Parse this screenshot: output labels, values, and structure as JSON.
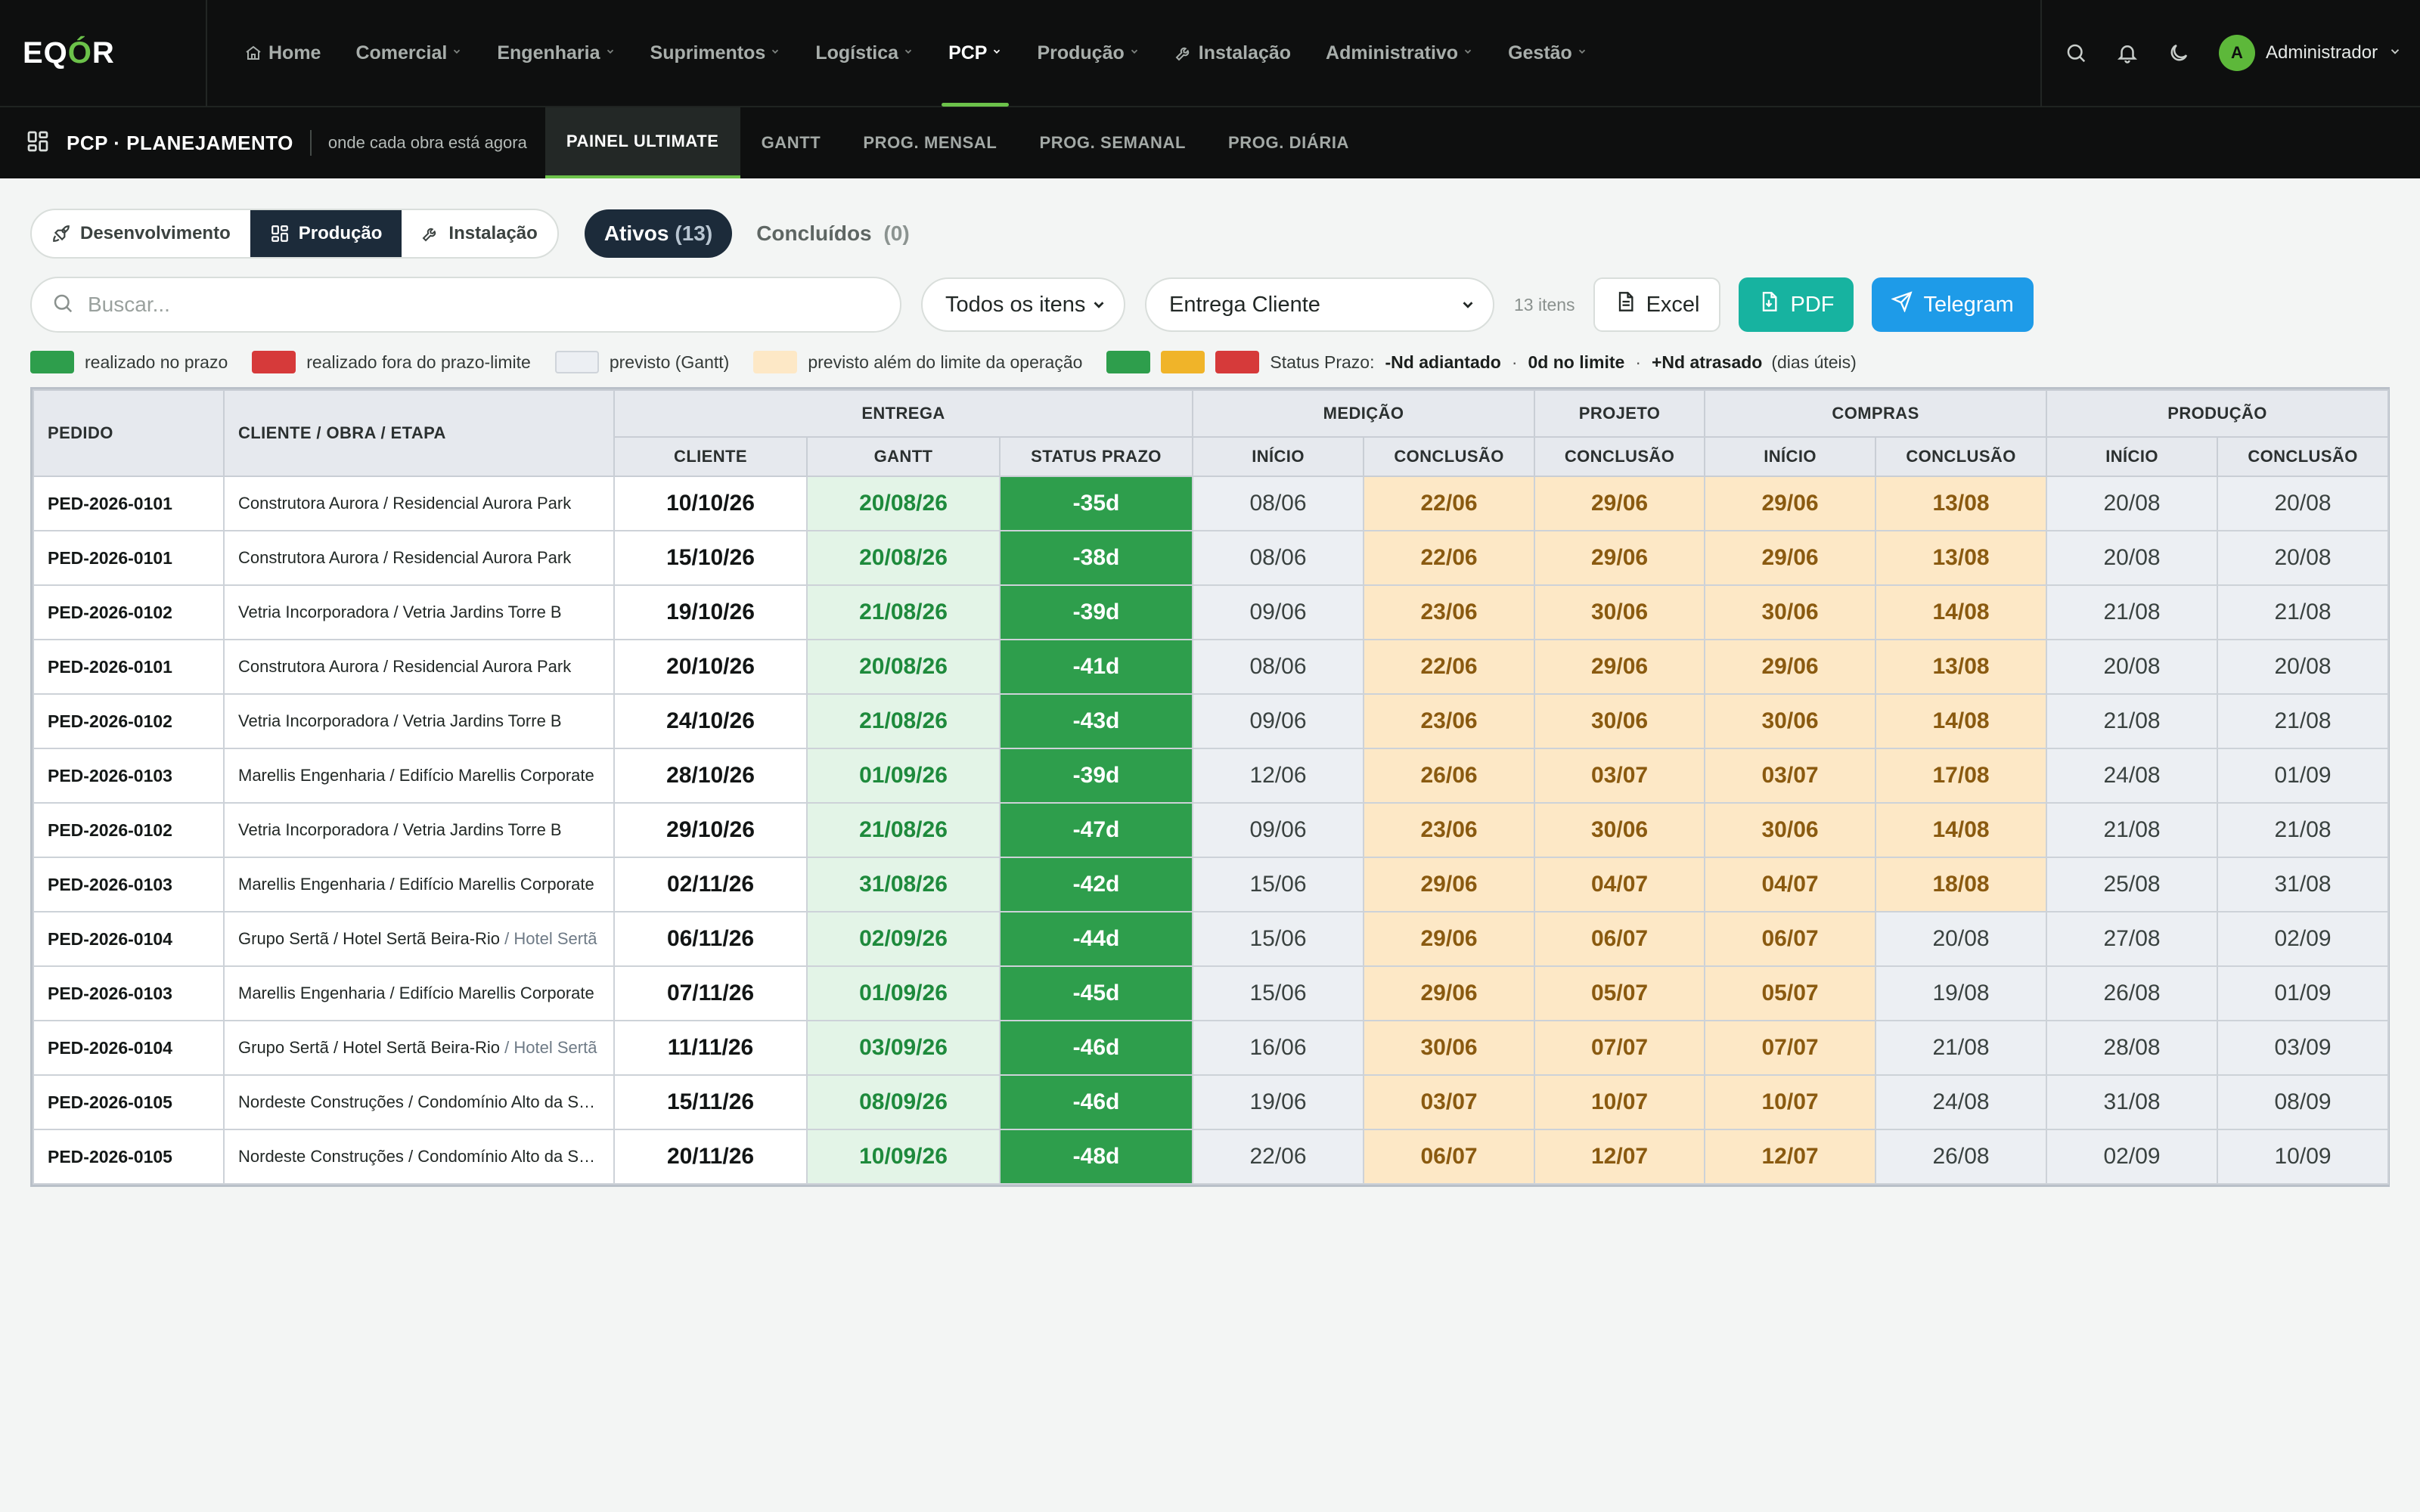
{
  "app": {
    "logo": "EQÓR",
    "nav": [
      {
        "label": "Home",
        "icon": "home-icon"
      },
      {
        "label": "Comercial"
      },
      {
        "label": "Engenharia"
      },
      {
        "label": "Suprimentos"
      },
      {
        "label": "Logística"
      },
      {
        "label": "PCP",
        "active": true
      },
      {
        "label": "Produção"
      },
      {
        "label": "Instalação",
        "icon": "wrench-icon"
      },
      {
        "label": "Administrativo"
      },
      {
        "label": "Gestão"
      }
    ],
    "user": {
      "initial": "A",
      "name": "Administrador"
    }
  },
  "subbar": {
    "title": "PCP · PLANEJAMENTO",
    "description": "onde cada obra está agora",
    "tabs": [
      {
        "label": "PAINEL ULTIMATE",
        "active": true
      },
      {
        "label": "GANTT"
      },
      {
        "label": "PROG. MENSAL"
      },
      {
        "label": "PROG. SEMANAL"
      },
      {
        "label": "PROG. DIÁRIA"
      }
    ]
  },
  "filters": {
    "segments": [
      {
        "label": "Desenvolvimento",
        "icon": "rocket-icon"
      },
      {
        "label": "Produção",
        "icon": "grid-icon",
        "active": true
      },
      {
        "label": "Instalação",
        "icon": "wrench-icon"
      }
    ],
    "active_tab": {
      "label": "Ativos",
      "count": "(13)"
    },
    "done_tab": {
      "label": "Concluídos",
      "count": "(0)"
    },
    "search_placeholder": "Buscar...",
    "item_select": "Todos os itens",
    "sort_select": "Entrega Cliente",
    "items_count": "13 itens",
    "buttons": {
      "excel": "Excel",
      "pdf": "PDF",
      "telegram": "Telegram"
    }
  },
  "legend": {
    "items": [
      {
        "color": "#2e9e4c",
        "label": "realizado no prazo"
      },
      {
        "color": "#d63a3a",
        "label": "realizado fora do prazo-limite"
      },
      {
        "color": "#eceff3",
        "label": "previsto (Gantt)"
      },
      {
        "color": "#fde8c6",
        "label": "previsto além do limite da operação"
      }
    ],
    "status_colors": [
      "#2e9e4c",
      "#f0b429",
      "#d63a3a"
    ],
    "status_label": "Status Prazo:",
    "status_1": "-Nd adiantado",
    "status_2": "0d no limite",
    "status_3": "+Nd atrasado",
    "status_note": "(dias úteis)"
  },
  "table": {
    "groups": {
      "pedido": "PEDIDO",
      "cliente": "CLIENTE / OBRA / ETAPA",
      "entrega": "ENTREGA",
      "medicao": "MEDIÇÃO",
      "projeto": "PROJETO",
      "compras": "COMPRAS",
      "producao": "PRODUÇÃO"
    },
    "sub": {
      "cliente": "CLIENTE",
      "gantt": "GANTT",
      "status": "STATUS PRAZO",
      "inicio": "INÍCIO",
      "conclusao": "CONCLUSÃO"
    },
    "rows": [
      {
        "pedido": "PED-2026-0101",
        "cliente": "Construtora Aurora / Residencial Aurora Park",
        "sub": "",
        "entrega_cliente": "10/10/26",
        "gantt": "20/08/26",
        "status": "-35d",
        "med_ini": "08/06",
        "med_conc": "22/06",
        "proj_conc": "29/06",
        "comp_ini": "29/06",
        "comp_conc": "13/08",
        "prod_ini": "20/08",
        "prod_conc": "20/08",
        "comp_conc_late": true
      },
      {
        "pedido": "PED-2026-0101",
        "cliente": "Construtora Aurora / Residencial Aurora Park",
        "sub": "",
        "entrega_cliente": "15/10/26",
        "gantt": "20/08/26",
        "status": "-38d",
        "med_ini": "08/06",
        "med_conc": "22/06",
        "proj_conc": "29/06",
        "comp_ini": "29/06",
        "comp_conc": "13/08",
        "prod_ini": "20/08",
        "prod_conc": "20/08",
        "comp_conc_late": true
      },
      {
        "pedido": "PED-2026-0102",
        "cliente": "Vetria Incorporadora / Vetria Jardins Torre B",
        "sub": "",
        "entrega_cliente": "19/10/26",
        "gantt": "21/08/26",
        "status": "-39d",
        "med_ini": "09/06",
        "med_conc": "23/06",
        "proj_conc": "30/06",
        "comp_ini": "30/06",
        "comp_conc": "14/08",
        "prod_ini": "21/08",
        "prod_conc": "21/08",
        "comp_conc_late": true
      },
      {
        "pedido": "PED-2026-0101",
        "cliente": "Construtora Aurora / Residencial Aurora Park",
        "sub": "",
        "entrega_cliente": "20/10/26",
        "gantt": "20/08/26",
        "status": "-41d",
        "med_ini": "08/06",
        "med_conc": "22/06",
        "proj_conc": "29/06",
        "comp_ini": "29/06",
        "comp_conc": "13/08",
        "prod_ini": "20/08",
        "prod_conc": "20/08",
        "comp_conc_late": true
      },
      {
        "pedido": "PED-2026-0102",
        "cliente": "Vetria Incorporadora / Vetria Jardins Torre B",
        "sub": "",
        "entrega_cliente": "24/10/26",
        "gantt": "21/08/26",
        "status": "-43d",
        "med_ini": "09/06",
        "med_conc": "23/06",
        "proj_conc": "30/06",
        "comp_ini": "30/06",
        "comp_conc": "14/08",
        "prod_ini": "21/08",
        "prod_conc": "21/08",
        "comp_conc_late": true
      },
      {
        "pedido": "PED-2026-0103",
        "cliente": "Marellis Engenharia / Edifício Marellis Corporate",
        "sub": "",
        "entrega_cliente": "28/10/26",
        "gantt": "01/09/26",
        "status": "-39d",
        "med_ini": "12/06",
        "med_conc": "26/06",
        "proj_conc": "03/07",
        "comp_ini": "03/07",
        "comp_conc": "17/08",
        "prod_ini": "24/08",
        "prod_conc": "01/09",
        "comp_conc_late": true
      },
      {
        "pedido": "PED-2026-0102",
        "cliente": "Vetria Incorporadora / Vetria Jardins Torre B",
        "sub": "",
        "entrega_cliente": "29/10/26",
        "gantt": "21/08/26",
        "status": "-47d",
        "med_ini": "09/06",
        "med_conc": "23/06",
        "proj_conc": "30/06",
        "comp_ini": "30/06",
        "comp_conc": "14/08",
        "prod_ini": "21/08",
        "prod_conc": "21/08",
        "comp_conc_late": true
      },
      {
        "pedido": "PED-2026-0103",
        "cliente": "Marellis Engenharia / Edifício Marellis Corporate",
        "sub": "",
        "entrega_cliente": "02/11/26",
        "gantt": "31/08/26",
        "status": "-42d",
        "med_ini": "15/06",
        "med_conc": "29/06",
        "proj_conc": "04/07",
        "comp_ini": "04/07",
        "comp_conc": "18/08",
        "prod_ini": "25/08",
        "prod_conc": "31/08",
        "comp_conc_late": true
      },
      {
        "pedido": "PED-2026-0104",
        "cliente": "Grupo Sertã / Hotel Sertã Beira-Rio",
        "sub": " / Hotel Sertã",
        "entrega_cliente": "06/11/26",
        "gantt": "02/09/26",
        "status": "-44d",
        "med_ini": "15/06",
        "med_conc": "29/06",
        "proj_conc": "06/07",
        "comp_ini": "06/07",
        "comp_conc": "20/08",
        "prod_ini": "27/08",
        "prod_conc": "02/09",
        "comp_conc_late": false
      },
      {
        "pedido": "PED-2026-0103",
        "cliente": "Marellis Engenharia / Edifício Marellis Corporate",
        "sub": "",
        "entrega_cliente": "07/11/26",
        "gantt": "01/09/26",
        "status": "-45d",
        "med_ini": "15/06",
        "med_conc": "29/06",
        "proj_conc": "05/07",
        "comp_ini": "05/07",
        "comp_conc": "19/08",
        "prod_ini": "26/08",
        "prod_conc": "01/09",
        "comp_conc_late": false
      },
      {
        "pedido": "PED-2026-0104",
        "cliente": "Grupo Sertã / Hotel Sertã Beira-Rio",
        "sub": " / Hotel Sertã",
        "entrega_cliente": "11/11/26",
        "gantt": "03/09/26",
        "status": "-46d",
        "med_ini": "16/06",
        "med_conc": "30/06",
        "proj_conc": "07/07",
        "comp_ini": "07/07",
        "comp_conc": "21/08",
        "prod_ini": "28/08",
        "prod_conc": "03/09",
        "comp_conc_late": false
      },
      {
        "pedido": "PED-2026-0105",
        "cliente": "Nordeste Construções / Condomínio Alto da Serra",
        "sub": "",
        "entrega_cliente": "15/11/26",
        "gantt": "08/09/26",
        "status": "-46d",
        "med_ini": "19/06",
        "med_conc": "03/07",
        "proj_conc": "10/07",
        "comp_ini": "10/07",
        "comp_conc": "24/08",
        "prod_ini": "31/08",
        "prod_conc": "08/09",
        "comp_conc_late": false
      },
      {
        "pedido": "PED-2026-0105",
        "cliente": "Nordeste Construções / Condomínio Alto da Serra",
        "sub": "",
        "entrega_cliente": "20/11/26",
        "gantt": "10/09/26",
        "status": "-48d",
        "med_ini": "22/06",
        "med_conc": "06/07",
        "proj_conc": "12/07",
        "comp_ini": "12/07",
        "comp_conc": "26/08",
        "prod_ini": "02/09",
        "prod_conc": "10/09",
        "comp_conc_late": false
      }
    ]
  }
}
